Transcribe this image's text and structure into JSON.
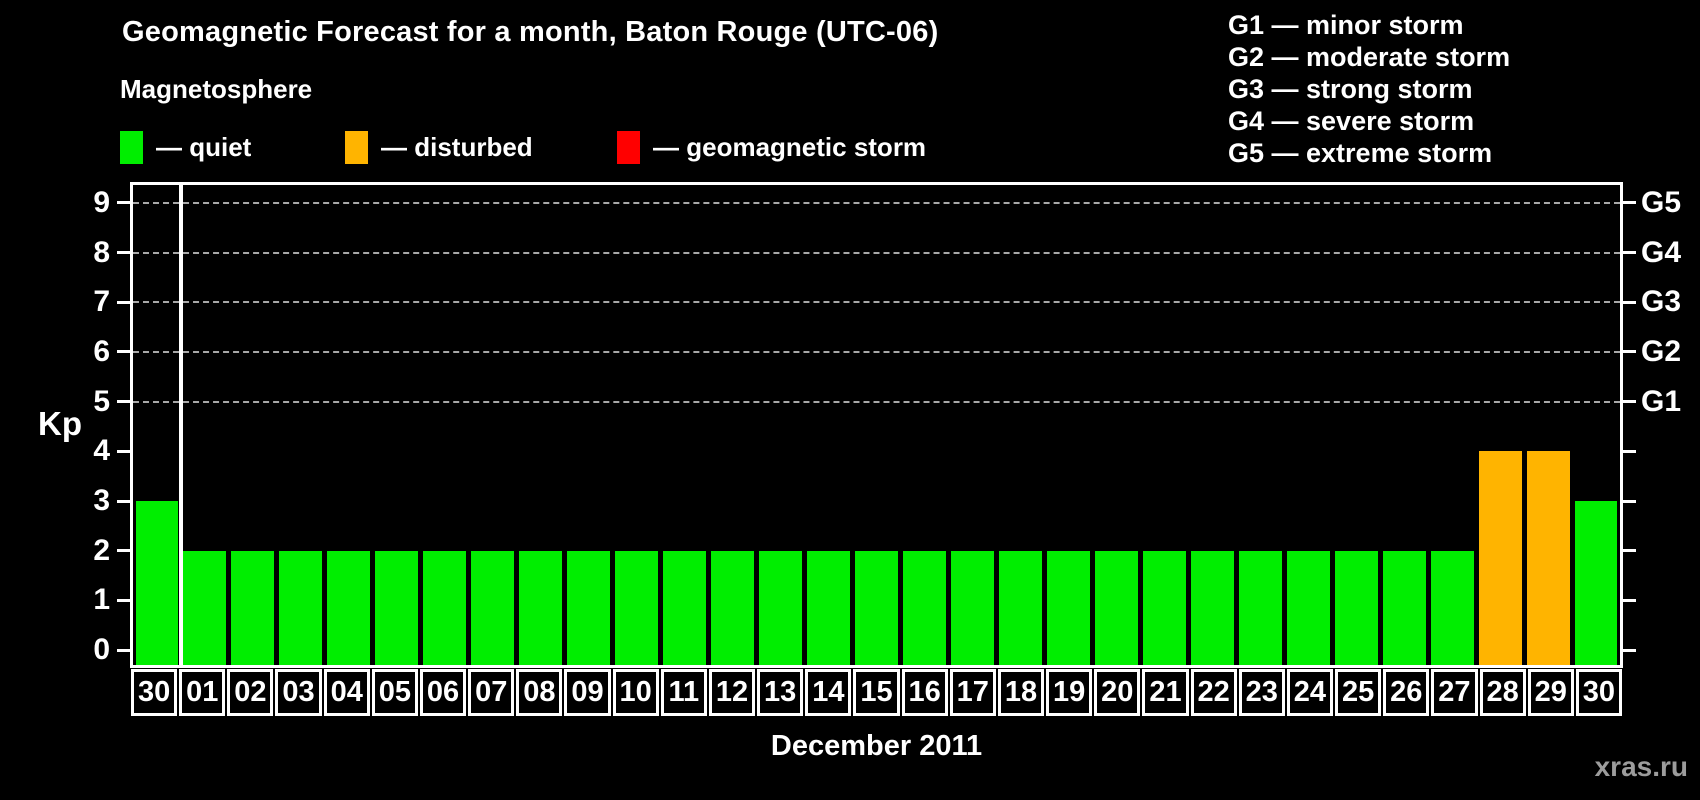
{
  "title": "Geomagnetic Forecast for a month, Baton Rouge (UTC-06)",
  "legend": {
    "title": "Magnetosphere",
    "items": [
      {
        "id": "quiet",
        "label": "— quiet",
        "color": "#00ee00"
      },
      {
        "id": "disturbed",
        "label": "— disturbed",
        "color": "#ffb400"
      },
      {
        "id": "storm",
        "label": "— geomagnetic storm",
        "color": "#ff0000"
      }
    ]
  },
  "g_scale_legend": {
    "lines": [
      "G1 — minor storm",
      "G2 — moderate storm",
      "G3 — strong storm",
      "G4 — severe storm",
      "G5 — extreme storm"
    ]
  },
  "watermark": "xras.ru",
  "chart_data": {
    "type": "bar",
    "title": "Geomagnetic Forecast for a month, Baton Rouge (UTC-06)",
    "xlabel": "December 2011",
    "ylabel": "Kp",
    "ylim": [
      -0.3,
      9.36
    ],
    "y_ticks": [
      0,
      1,
      2,
      3,
      4,
      5,
      6,
      7,
      8,
      9
    ],
    "gridlines_kp": [
      5,
      6,
      7,
      8,
      9
    ],
    "grid": "dashed horizontal lines at G1–G5 levels only",
    "legend_position": "top",
    "right_axis": [
      {
        "kp": 5,
        "label": "G1"
      },
      {
        "kp": 6,
        "label": "G2"
      },
      {
        "kp": 7,
        "label": "G3"
      },
      {
        "kp": 8,
        "label": "G4"
      },
      {
        "kp": 9,
        "label": "G5"
      }
    ],
    "categories": [
      "30",
      "01",
      "02",
      "03",
      "04",
      "05",
      "06",
      "07",
      "08",
      "09",
      "10",
      "11",
      "12",
      "13",
      "14",
      "15",
      "16",
      "17",
      "18",
      "19",
      "20",
      "21",
      "22",
      "23",
      "24",
      "25",
      "26",
      "27",
      "28",
      "29",
      "30"
    ],
    "values": [
      3,
      2,
      2,
      2,
      2,
      2,
      2,
      2,
      2,
      2,
      2,
      2,
      2,
      2,
      2,
      2,
      2,
      2,
      2,
      2,
      2,
      2,
      2,
      2,
      2,
      2,
      2,
      2,
      4,
      4,
      3
    ],
    "statuses": [
      "quiet",
      "quiet",
      "quiet",
      "quiet",
      "quiet",
      "quiet",
      "quiet",
      "quiet",
      "quiet",
      "quiet",
      "quiet",
      "quiet",
      "quiet",
      "quiet",
      "quiet",
      "quiet",
      "quiet",
      "quiet",
      "quiet",
      "quiet",
      "quiet",
      "quiet",
      "quiet",
      "quiet",
      "quiet",
      "quiet",
      "quiet",
      "quiet",
      "disturbed",
      "disturbed",
      "quiet"
    ],
    "status_colors": {
      "quiet": "#00ee00",
      "disturbed": "#ffb400",
      "storm": "#ff0000"
    },
    "prev_month_divider_after_index": 0
  }
}
